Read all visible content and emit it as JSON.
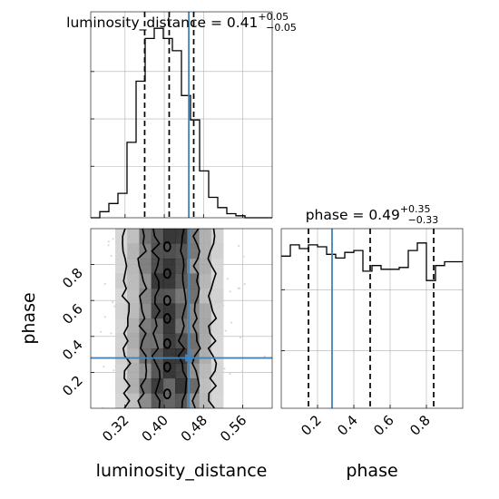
{
  "chart_data": {
    "type": "corner",
    "parameters": [
      {
        "name": "luminosity_distance",
        "title_prefix": "luminosity_distance = 0.41",
        "title_sup": "+0.05",
        "title_sub": "−0.05",
        "axis_label": "luminosity_distance",
        "range": [
          0.25,
          0.62
        ],
        "ticks": [
          0.32,
          0.4,
          0.48,
          0.56
        ],
        "tick_labels": [
          "0.32",
          "0.40",
          "0.48",
          "0.56"
        ],
        "quantiles": [
          0.36,
          0.41,
          0.46
        ],
        "truth": 0.45
      },
      {
        "name": "phase",
        "title_prefix": "phase = 0.49",
        "title_sup": "+0.35",
        "title_sub": "−0.33",
        "axis_label": "phase",
        "range": [
          0.0,
          1.0
        ],
        "ticks": [
          0.2,
          0.4,
          0.6,
          0.8
        ],
        "tick_labels": [
          "0.2",
          "0.4",
          "0.6",
          "0.8"
        ],
        "quantiles": [
          0.15,
          0.49,
          0.84
        ],
        "truth": 0.28
      }
    ],
    "hist_distance": {
      "x_start": 0.25,
      "bin_width": 0.0185,
      "counts": [
        0,
        3,
        7,
        12,
        37,
        67,
        88,
        93,
        88,
        82,
        60,
        48,
        23,
        10,
        5,
        2,
        1,
        0,
        0,
        0
      ]
    },
    "hist_phase": {
      "x_start": 0.0,
      "bin_width": 0.05,
      "counts": [
        81,
        87,
        85,
        87,
        86,
        82,
        80,
        83,
        84,
        73,
        76,
        74,
        74,
        75,
        84,
        88,
        68,
        76,
        78,
        78
      ]
    },
    "scatter": {
      "x_mean": 0.41,
      "x_sd": 0.05,
      "y_range": [
        0.0,
        1.0
      ]
    },
    "contour_levels": 3,
    "grid": true,
    "line_colors": {
      "truth": "#4682b4",
      "hist": "#000000",
      "quantile": "#000000",
      "scatter": "#cfcfcf",
      "grid": "#b0b0b0"
    }
  }
}
